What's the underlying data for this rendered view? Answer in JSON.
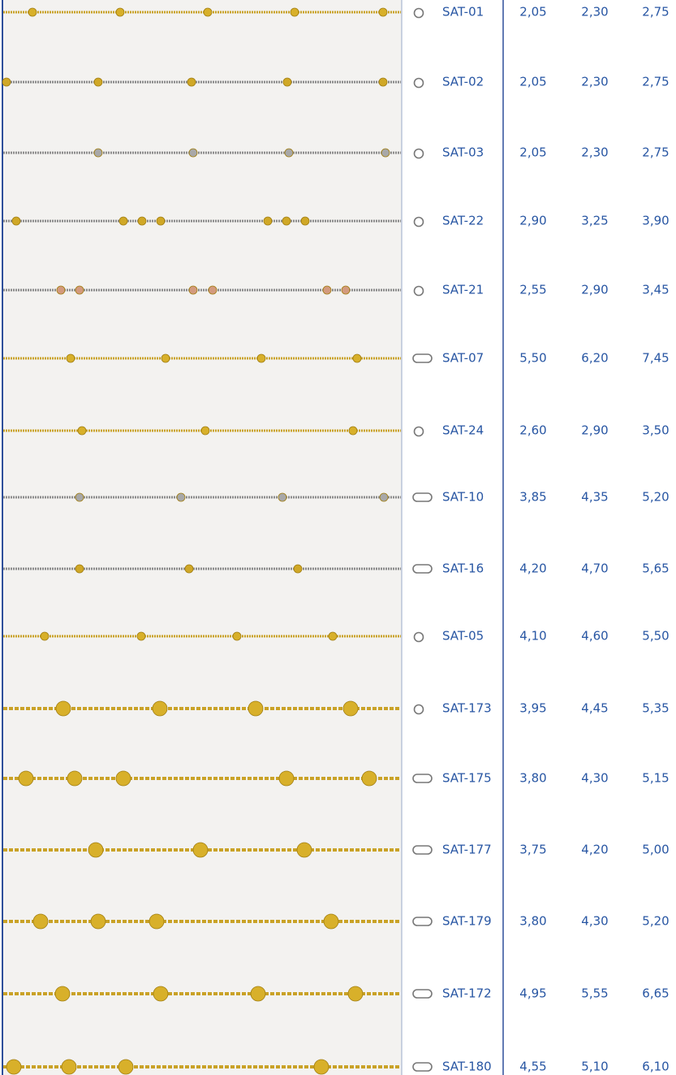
{
  "table": {
    "rows": [
      {
        "code": "SAT-01",
        "prices": [
          "2,05",
          "2,30",
          "2,75"
        ],
        "metal": "gold",
        "clasp": "ring"
      },
      {
        "code": "SAT-02",
        "prices": [
          "2,05",
          "2,30",
          "2,75"
        ],
        "metal": "silver-gold",
        "clasp": "ring"
      },
      {
        "code": "SAT-03",
        "prices": [
          "2,05",
          "2,30",
          "2,75"
        ],
        "metal": "silver",
        "clasp": "ring"
      },
      {
        "code": "SAT-22",
        "prices": [
          "2,90",
          "3,25",
          "3,90"
        ],
        "metal": "silver-gold",
        "clasp": "ring"
      },
      {
        "code": "SAT-21",
        "prices": [
          "2,55",
          "2,90",
          "3,45"
        ],
        "metal": "silver-rose",
        "clasp": "ring"
      },
      {
        "code": "SAT-07",
        "prices": [
          "5,50",
          "6,20",
          "7,45"
        ],
        "metal": "gold",
        "clasp": "lobster"
      },
      {
        "code": "SAT-24",
        "prices": [
          "2,60",
          "2,90",
          "3,50"
        ],
        "metal": "gold",
        "clasp": "ring"
      },
      {
        "code": "SAT-10",
        "prices": [
          "3,85",
          "4,35",
          "5,20"
        ],
        "metal": "silver",
        "clasp": "lobster"
      },
      {
        "code": "SAT-16",
        "prices": [
          "4,20",
          "4,70",
          "5,65"
        ],
        "metal": "silver-gold",
        "clasp": "lobster"
      },
      {
        "code": "SAT-05",
        "prices": [
          "4,10",
          "4,60",
          "5,50"
        ],
        "metal": "gold",
        "clasp": "ring"
      },
      {
        "code": "SAT-173",
        "prices": [
          "3,95",
          "4,45",
          "5,35"
        ],
        "metal": "gold",
        "clasp": "ring"
      },
      {
        "code": "SAT-175",
        "prices": [
          "3,80",
          "4,30",
          "5,15"
        ],
        "metal": "gold",
        "clasp": "lobster"
      },
      {
        "code": "SAT-177",
        "prices": [
          "3,75",
          "4,20",
          "5,00"
        ],
        "metal": "gold",
        "clasp": "lobster"
      },
      {
        "code": "SAT-179",
        "prices": [
          "3,80",
          "4,30",
          "5,20"
        ],
        "metal": "gold",
        "clasp": "lobster"
      },
      {
        "code": "SAT-172",
        "prices": [
          "4,95",
          "5,55",
          "6,65"
        ],
        "metal": "gold",
        "clasp": "lobster"
      },
      {
        "code": "SAT-180",
        "prices": [
          "4,55",
          "5,10",
          "6,10"
        ],
        "metal": "gold",
        "clasp": "lobster"
      }
    ]
  }
}
